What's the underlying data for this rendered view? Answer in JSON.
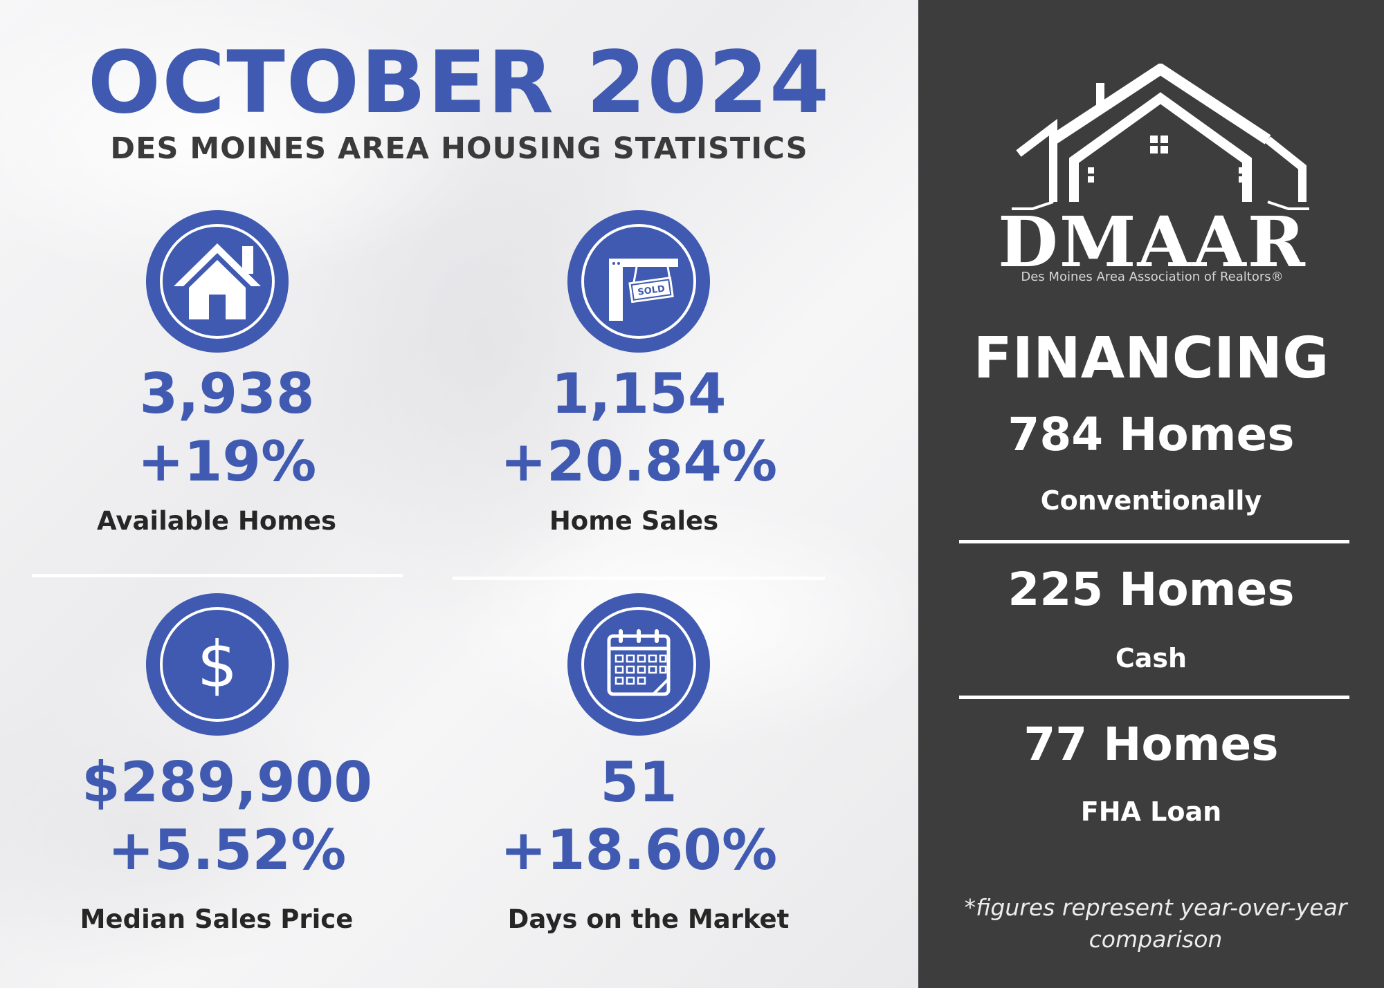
{
  "header": {
    "title": "OCTOBER 2024",
    "subtitle": "DES MOINES AREA HOUSING STATISTICS"
  },
  "stats": [
    {
      "icon": "house-icon",
      "value": "3,938",
      "change": "+19%",
      "label": "Available Homes"
    },
    {
      "icon": "sold-sign-icon",
      "value": "1,154",
      "change": "+20.84%",
      "label": "Home Sales"
    },
    {
      "icon": "dollar-icon",
      "value": "$289,900",
      "change": "+5.52%",
      "label": "Median Sales Price"
    },
    {
      "icon": "calendar-icon",
      "value": "51",
      "change": "+18.60%",
      "label": "Days on the Market"
    }
  ],
  "sign_text": "SOLD",
  "logo": {
    "name": "DMAAR",
    "tagline": "Des Moines Area Association of Realtors®"
  },
  "financing": {
    "heading": "FINANCING",
    "items": [
      {
        "count": "784 Homes",
        "label": "Conventionally"
      },
      {
        "count": "225 Homes",
        "label": "Cash"
      },
      {
        "count": "77 Homes",
        "label": "FHA Loan"
      }
    ],
    "footnote": "*figures represent year-over-year comparison"
  },
  "colors": {
    "accent_blue": "#3f5ab0",
    "panel_dark": "#3d3d3e",
    "text_dark": "#262626"
  }
}
